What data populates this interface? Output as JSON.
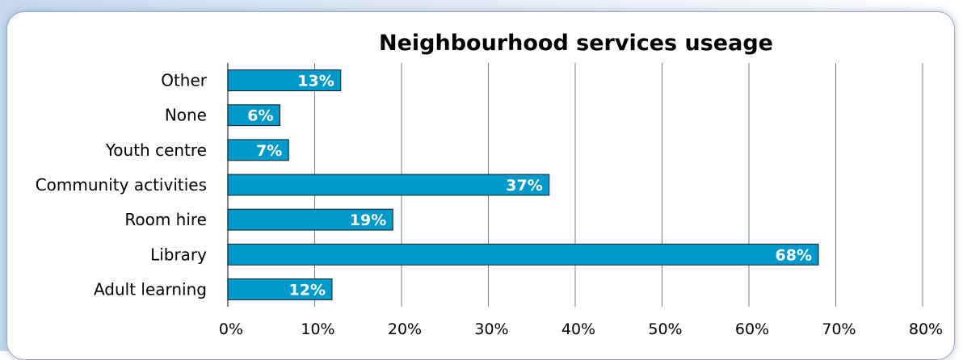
{
  "chart_data": {
    "type": "bar",
    "orientation": "horizontal",
    "title": "Neighbourhood services useage",
    "categories": [
      "Other",
      "None",
      "Youth centre",
      "Community activities",
      "Room hire",
      "Library",
      "Adult learning"
    ],
    "values": [
      13,
      6,
      7,
      37,
      19,
      68,
      12
    ],
    "data_labels": [
      "13%",
      "6%",
      "7%",
      "37%",
      "19%",
      "68%",
      "12%"
    ],
    "x_ticks": [
      "0%",
      "10%",
      "20%",
      "30%",
      "40%",
      "50%",
      "60%",
      "70%",
      "80%"
    ],
    "xlim": [
      0,
      80
    ],
    "xlabel": "",
    "ylabel": "",
    "grid": "vertical",
    "legend": "none",
    "colors": {
      "bar": "#0099cc",
      "bar_border": "#1a1a1a",
      "grid": "#7f7f7f"
    }
  }
}
